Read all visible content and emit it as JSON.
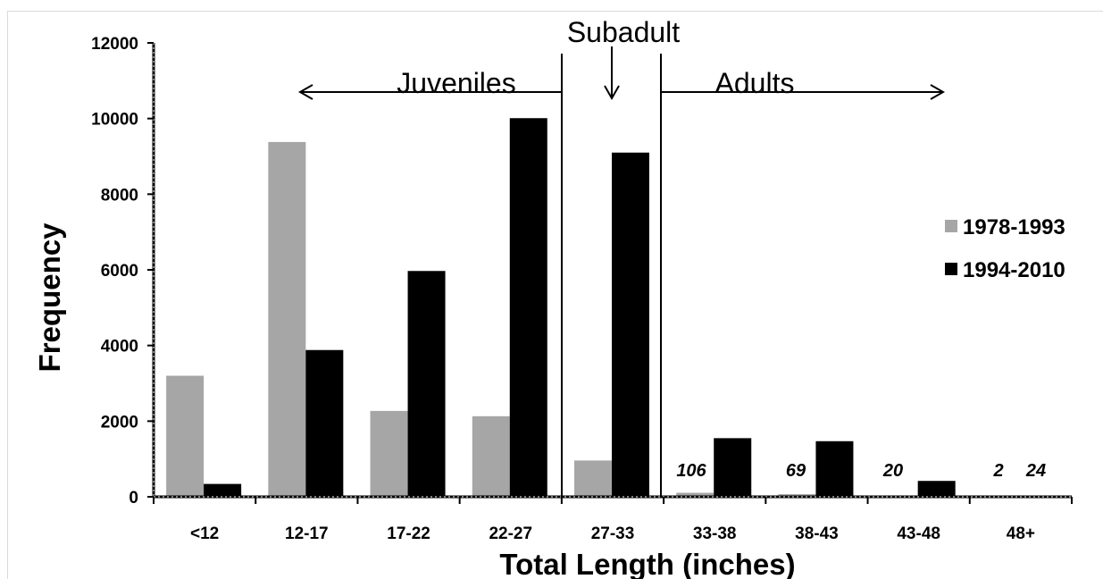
{
  "chart_data": {
    "type": "bar",
    "categories": [
      "<12",
      "12-17",
      "17-22",
      "22-27",
      "27-33",
      "33-38",
      "38-43",
      "43-48",
      "48+"
    ],
    "series": [
      {
        "name": "1978-1993",
        "color": "#a6a6a6",
        "values": [
          3200,
          9380,
          2270,
          2130,
          960,
          106,
          69,
          20,
          2
        ]
      },
      {
        "name": "1994-2010",
        "color": "#000000",
        "values": [
          340,
          3880,
          5970,
          10010,
          9100,
          1550,
          1470,
          420,
          24
        ]
      }
    ],
    "data_labels": [
      {
        "category": "33-38",
        "text": "106"
      },
      {
        "category": "38-43",
        "text": "69"
      },
      {
        "category": "43-48",
        "text": "20"
      },
      {
        "category": "48+",
        "text": "2"
      },
      {
        "category": "48+",
        "text": "24"
      }
    ],
    "xlabel": "Total Length (inches)",
    "ylabel": "Frequency",
    "ylim": [
      0,
      12000
    ],
    "yticks": [
      "0",
      "2000",
      "4000",
      "6000",
      "8000",
      "10000",
      "12000"
    ],
    "grid": false,
    "legend_position": "right",
    "annotations": [
      "Juveniles",
      "Subadult",
      "Adults"
    ]
  }
}
